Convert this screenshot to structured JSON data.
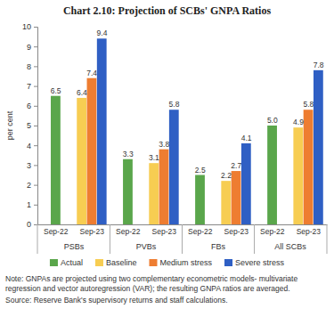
{
  "chart_data": {
    "type": "bar",
    "title": "Chart 2.10: Projection of SCBs' GNPA Ratios",
    "y_label": "per cent",
    "categories": [
      "Sep-22",
      "Sep-23",
      "Sep-22",
      "Sep-23",
      "Sep-22",
      "Sep-23",
      "Sep-22",
      "Sep-23"
    ],
    "groups": [
      "PSBs",
      "PVBs",
      "FBs",
      "All SCBs"
    ],
    "series": [
      {
        "name": "Actual",
        "color": "#5aa64b",
        "values": [
          6.5,
          null,
          3.3,
          null,
          2.5,
          null,
          5.0,
          null
        ],
        "value_labels": [
          "6.5",
          null,
          "3.3",
          null,
          "2.5",
          null,
          "5.0",
          null
        ]
      },
      {
        "name": "Baseline",
        "color": "#f7cd52",
        "values": [
          null,
          6.4,
          null,
          3.1,
          null,
          2.2,
          null,
          4.9
        ],
        "value_labels": [
          null,
          "6.4",
          null,
          "3.1",
          null,
          "2.2",
          null,
          "4.9"
        ]
      },
      {
        "name": "Medium stress",
        "color": "#ee7d31",
        "values": [
          null,
          7.4,
          null,
          3.8,
          null,
          2.7,
          null,
          5.8
        ],
        "value_labels": [
          null,
          "7.4",
          null,
          "3.8",
          null,
          "2.7",
          null,
          "5.8"
        ]
      },
      {
        "name": "Severe stress",
        "color": "#2f5fc4",
        "values": [
          null,
          9.4,
          null,
          5.8,
          null,
          4.1,
          null,
          7.8
        ],
        "value_labels": [
          null,
          "9.4",
          null,
          "5.8",
          null,
          "4.1",
          null,
          "7.8"
        ]
      }
    ],
    "ylim": [
      0,
      10
    ],
    "yticks": [
      0,
      1,
      2,
      3,
      4,
      5,
      6,
      7,
      8,
      9,
      10
    ],
    "grid": false,
    "legend": "bottom",
    "data_labels": true,
    "note": "Note: GNPAs are projected using two complementary econometric models- multivariate regression and vector autoregression (VAR); the resulting GNPA ratios are averaged.",
    "source": "Source: Reserve Bank's supervisory returns and staff calculations."
  }
}
